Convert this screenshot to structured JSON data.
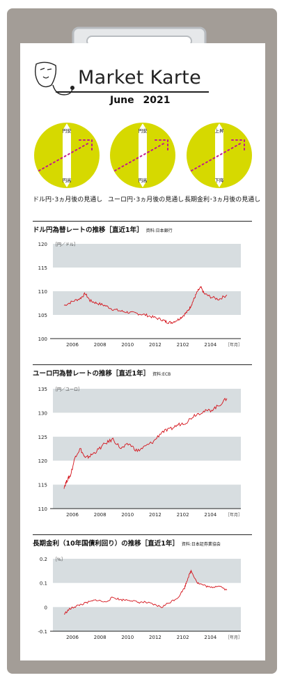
{
  "header": {
    "title": "Market Karte",
    "subtitle": "June   2021"
  },
  "colors": {
    "board": "#a39d97",
    "accent": "#d6d900",
    "line": "#d4121a",
    "band": "#d7dde0",
    "dots": "#c2188e"
  },
  "outlooks": [
    {
      "label": "ドル円･3ヵ月後の見通し",
      "top": "円安",
      "bottom": "円高"
    },
    {
      "label": "ユーロ円･3ヵ月後の見通し",
      "top": "円安",
      "bottom": "円高"
    },
    {
      "label": "長期金利･3ヵ月後の見通し",
      "top": "上昇",
      "bottom": "下降"
    }
  ],
  "chart_data": [
    {
      "type": "line",
      "title": "ドル円為替レートの推移［直近1年］",
      "source": "資料:日本銀行",
      "unit": "［円／ドル］",
      "x_unit": "［年月］",
      "ylim": [
        100,
        120
      ],
      "yticks": [
        "100",
        "105",
        "110",
        "115",
        "120"
      ],
      "xticks": [
        "2006",
        "2008",
        "2010",
        "2012",
        "2102",
        "2104"
      ],
      "x": [
        0,
        0.05,
        0.1,
        0.13,
        0.16,
        0.2,
        0.25,
        0.3,
        0.35,
        0.4,
        0.45,
        0.5,
        0.55,
        0.6,
        0.63,
        0.66,
        0.7,
        0.73,
        0.76,
        0.78,
        0.8,
        0.82,
        0.84,
        0.86,
        0.9,
        0.95,
        1.0
      ],
      "y": [
        107,
        107.8,
        108.5,
        109.5,
        108,
        107.5,
        107,
        106.2,
        105.8,
        105.5,
        105.3,
        105,
        104.5,
        104,
        103.5,
        103.4,
        104,
        104.8,
        105.8,
        107,
        108.5,
        110,
        110.8,
        109.5,
        108.8,
        108.3,
        109.2
      ]
    },
    {
      "type": "line",
      "title": "ユーロ円為替レートの推移［直近1年］",
      "source": "資料:ECB",
      "unit": "［円／ユーロ］",
      "x_unit": "［年月］",
      "ylim": [
        110,
        135
      ],
      "yticks": [
        "110",
        "115",
        "120",
        "125",
        "130",
        "135"
      ],
      "xticks": [
        "2006",
        "2008",
        "2010",
        "2012",
        "2102",
        "2104"
      ],
      "x": [
        0,
        0.02,
        0.04,
        0.07,
        0.1,
        0.13,
        0.16,
        0.2,
        0.25,
        0.3,
        0.35,
        0.4,
        0.45,
        0.5,
        0.55,
        0.6,
        0.65,
        0.7,
        0.75,
        0.8,
        0.85,
        0.9,
        0.95,
        1.0
      ],
      "y": [
        114.5,
        116,
        117,
        121,
        122.5,
        120.5,
        121,
        122,
        123.5,
        124.5,
        122.5,
        123.5,
        122,
        123,
        124,
        126,
        126.5,
        127.5,
        128,
        129.5,
        130.2,
        130.5,
        131.5,
        133
      ]
    },
    {
      "type": "line",
      "title": "長期金利（10年国債利回り）の推移［直近1年］",
      "source": "資料:日本証券業協会",
      "unit": "［%］",
      "x_unit": "［年月］",
      "ylim": [
        -0.1,
        0.2
      ],
      "yticks": [
        "-0.1",
        "0",
        "0.1",
        "0.2"
      ],
      "xticks": [
        "2006",
        "2008",
        "2010",
        "2012",
        "2102",
        "2104"
      ],
      "x": [
        0,
        0.03,
        0.06,
        0.1,
        0.15,
        0.2,
        0.25,
        0.3,
        0.35,
        0.4,
        0.45,
        0.5,
        0.55,
        0.6,
        0.65,
        0.7,
        0.74,
        0.76,
        0.78,
        0.82,
        0.86,
        0.9,
        0.95,
        1.0
      ],
      "y": [
        -0.03,
        -0.01,
        0.0,
        0.01,
        0.02,
        0.03,
        0.02,
        0.04,
        0.03,
        0.03,
        0.02,
        0.02,
        0.01,
        0.0,
        0.02,
        0.04,
        0.08,
        0.12,
        0.15,
        0.1,
        0.09,
        0.08,
        0.09,
        0.07
      ]
    }
  ]
}
